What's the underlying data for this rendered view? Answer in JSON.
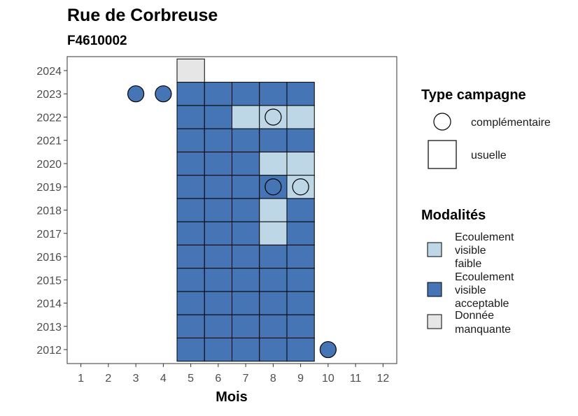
{
  "chart_data": {
    "type": "heatmap",
    "title": "Rue de Corbreuse",
    "subtitle": "F4610002",
    "xlabel": "Mois",
    "ylabel": "",
    "x_ticks": [
      1,
      2,
      3,
      4,
      5,
      6,
      7,
      8,
      9,
      10,
      11,
      12
    ],
    "y_ticks": [
      2012,
      2013,
      2014,
      2015,
      2016,
      2017,
      2018,
      2019,
      2020,
      2021,
      2022,
      2023,
      2024
    ],
    "xlim": [
      0.5,
      12.5
    ],
    "ylim": [
      2011.4,
      2024.6
    ],
    "grid": false,
    "legend_position": "right",
    "modalities": [
      {
        "key": "faible",
        "label_lines": [
          "Ecoulement",
          "visible",
          "faible"
        ],
        "color": "#bdd7e7"
      },
      {
        "key": "acceptable",
        "label_lines": [
          "Ecoulement",
          "visible",
          "acceptable"
        ],
        "color": "#4575b4"
      },
      {
        "key": "manquante",
        "label_lines": [
          "Donnée",
          "manquante"
        ],
        "color": "#e6e6e6"
      }
    ],
    "campaign_types": [
      {
        "key": "complementaire",
        "label": "complémentaire",
        "shape": "circle"
      },
      {
        "key": "usuelle",
        "label": "usuelle",
        "shape": "square"
      }
    ],
    "legend_titles": {
      "campaign": "Type campagne",
      "modality": "Modalités"
    },
    "cells": [
      {
        "year": 2012,
        "month": 5,
        "modality": "acceptable"
      },
      {
        "year": 2012,
        "month": 6,
        "modality": "acceptable"
      },
      {
        "year": 2012,
        "month": 7,
        "modality": "acceptable"
      },
      {
        "year": 2012,
        "month": 8,
        "modality": "acceptable"
      },
      {
        "year": 2012,
        "month": 9,
        "modality": "acceptable"
      },
      {
        "year": 2013,
        "month": 5,
        "modality": "acceptable"
      },
      {
        "year": 2013,
        "month": 6,
        "modality": "acceptable"
      },
      {
        "year": 2013,
        "month": 7,
        "modality": "acceptable"
      },
      {
        "year": 2013,
        "month": 8,
        "modality": "acceptable"
      },
      {
        "year": 2013,
        "month": 9,
        "modality": "acceptable"
      },
      {
        "year": 2014,
        "month": 5,
        "modality": "acceptable"
      },
      {
        "year": 2014,
        "month": 6,
        "modality": "acceptable"
      },
      {
        "year": 2014,
        "month": 7,
        "modality": "acceptable"
      },
      {
        "year": 2014,
        "month": 8,
        "modality": "acceptable"
      },
      {
        "year": 2014,
        "month": 9,
        "modality": "acceptable"
      },
      {
        "year": 2015,
        "month": 5,
        "modality": "acceptable"
      },
      {
        "year": 2015,
        "month": 6,
        "modality": "acceptable"
      },
      {
        "year": 2015,
        "month": 7,
        "modality": "acceptable"
      },
      {
        "year": 2015,
        "month": 8,
        "modality": "acceptable"
      },
      {
        "year": 2015,
        "month": 9,
        "modality": "acceptable"
      },
      {
        "year": 2016,
        "month": 5,
        "modality": "acceptable"
      },
      {
        "year": 2016,
        "month": 6,
        "modality": "acceptable"
      },
      {
        "year": 2016,
        "month": 7,
        "modality": "acceptable"
      },
      {
        "year": 2016,
        "month": 8,
        "modality": "acceptable"
      },
      {
        "year": 2016,
        "month": 9,
        "modality": "acceptable"
      },
      {
        "year": 2017,
        "month": 5,
        "modality": "acceptable"
      },
      {
        "year": 2017,
        "month": 6,
        "modality": "acceptable"
      },
      {
        "year": 2017,
        "month": 7,
        "modality": "acceptable"
      },
      {
        "year": 2017,
        "month": 8,
        "modality": "faible"
      },
      {
        "year": 2017,
        "month": 9,
        "modality": "acceptable"
      },
      {
        "year": 2018,
        "month": 5,
        "modality": "acceptable"
      },
      {
        "year": 2018,
        "month": 6,
        "modality": "acceptable"
      },
      {
        "year": 2018,
        "month": 7,
        "modality": "acceptable"
      },
      {
        "year": 2018,
        "month": 8,
        "modality": "faible"
      },
      {
        "year": 2018,
        "month": 9,
        "modality": "acceptable"
      },
      {
        "year": 2019,
        "month": 5,
        "modality": "acceptable"
      },
      {
        "year": 2019,
        "month": 6,
        "modality": "acceptable"
      },
      {
        "year": 2019,
        "month": 7,
        "modality": "acceptable"
      },
      {
        "year": 2019,
        "month": 8,
        "modality": "acceptable"
      },
      {
        "year": 2019,
        "month": 9,
        "modality": "faible"
      },
      {
        "year": 2020,
        "month": 5,
        "modality": "acceptable"
      },
      {
        "year": 2020,
        "month": 6,
        "modality": "acceptable"
      },
      {
        "year": 2020,
        "month": 7,
        "modality": "acceptable"
      },
      {
        "year": 2020,
        "month": 8,
        "modality": "faible"
      },
      {
        "year": 2020,
        "month": 9,
        "modality": "faible"
      },
      {
        "year": 2021,
        "month": 5,
        "modality": "acceptable"
      },
      {
        "year": 2021,
        "month": 6,
        "modality": "acceptable"
      },
      {
        "year": 2021,
        "month": 7,
        "modality": "acceptable"
      },
      {
        "year": 2021,
        "month": 8,
        "modality": "acceptable"
      },
      {
        "year": 2021,
        "month": 9,
        "modality": "acceptable"
      },
      {
        "year": 2022,
        "month": 5,
        "modality": "acceptable"
      },
      {
        "year": 2022,
        "month": 6,
        "modality": "acceptable"
      },
      {
        "year": 2022,
        "month": 7,
        "modality": "faible"
      },
      {
        "year": 2022,
        "month": 8,
        "modality": "faible"
      },
      {
        "year": 2022,
        "month": 9,
        "modality": "faible"
      },
      {
        "year": 2023,
        "month": 5,
        "modality": "acceptable"
      },
      {
        "year": 2023,
        "month": 6,
        "modality": "acceptable"
      },
      {
        "year": 2023,
        "month": 7,
        "modality": "acceptable"
      },
      {
        "year": 2023,
        "month": 8,
        "modality": "acceptable"
      },
      {
        "year": 2023,
        "month": 9,
        "modality": "acceptable"
      },
      {
        "year": 2024,
        "month": 5,
        "modality": "manquante"
      }
    ],
    "points": [
      {
        "year": 2012,
        "month": 10,
        "modality": "acceptable"
      },
      {
        "year": 2019,
        "month": 8,
        "modality": "acceptable"
      },
      {
        "year": 2019,
        "month": 9,
        "modality": "faible"
      },
      {
        "year": 2022,
        "month": 8,
        "modality": "faible"
      },
      {
        "year": 2023,
        "month": 3,
        "modality": "acceptable"
      },
      {
        "year": 2023,
        "month": 4,
        "modality": "acceptable"
      }
    ]
  }
}
